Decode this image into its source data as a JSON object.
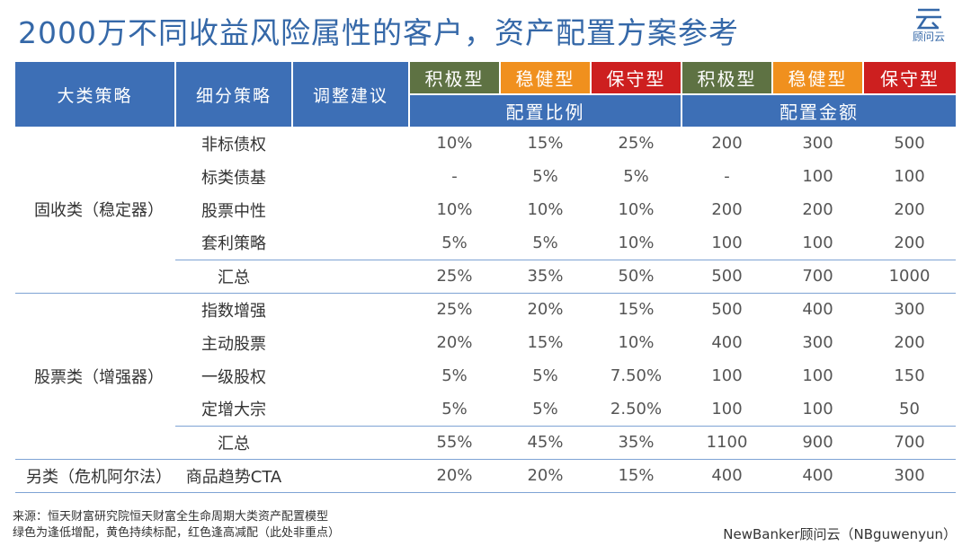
{
  "title": "2000万不同收益风险属性的客户，资产配置方案参考",
  "logo": {
    "icon": "guwenyun-logo-icon",
    "text": "顾问云"
  },
  "colors": {
    "header": "#3d6fb6",
    "aggressive": "#5e7243",
    "balanced": "#f0901e",
    "conservative": "#cd1f1f",
    "title": "#3568a8"
  },
  "table": {
    "headers": {
      "category": "大类策略",
      "substrategy": "细分策略",
      "adjust": "调整建议"
    },
    "risk_labels": [
      "积极型",
      "稳健型",
      "保守型",
      "积极型",
      "稳健型",
      "保守型"
    ],
    "group_labels": [
      "配置比例",
      "配置金额"
    ],
    "sections": [
      {
        "category": "固收类（稳定器）",
        "rows": [
          {
            "name": "非标债权",
            "values": [
              "10%",
              "15%",
              "25%",
              "200",
              "300",
              "500"
            ]
          },
          {
            "name": "标类债基",
            "values": [
              "-",
              "5%",
              "5%",
              "-",
              "100",
              "100"
            ]
          },
          {
            "name": "股票中性",
            "values": [
              "10%",
              "10%",
              "10%",
              "200",
              "200",
              "200"
            ]
          },
          {
            "name": "套利策略",
            "values": [
              "5%",
              "5%",
              "10%",
              "100",
              "100",
              "200"
            ]
          }
        ],
        "summary": {
          "name": "汇总",
          "values": [
            "25%",
            "35%",
            "50%",
            "500",
            "700",
            "1000"
          ]
        }
      },
      {
        "category": "股票类（增强器）",
        "rows": [
          {
            "name": "指数增强",
            "values": [
              "25%",
              "20%",
              "15%",
              "500",
              "400",
              "300"
            ]
          },
          {
            "name": "主动股票",
            "values": [
              "20%",
              "15%",
              "10%",
              "400",
              "300",
              "200"
            ]
          },
          {
            "name": "一级股权",
            "values": [
              "5%",
              "5%",
              "7.50%",
              "100",
              "100",
              "150"
            ]
          },
          {
            "name": "定增大宗",
            "values": [
              "5%",
              "5%",
              "2.50%",
              "100",
              "100",
              "50"
            ]
          }
        ],
        "summary": {
          "name": "汇总",
          "values": [
            "55%",
            "45%",
            "35%",
            "1100",
            "900",
            "700"
          ]
        }
      },
      {
        "category": "另类（危机阿尔法）",
        "rows": [
          {
            "name": "商品趋势CTA",
            "values": [
              "20%",
              "20%",
              "15%",
              "400",
              "400",
              "300"
            ]
          }
        ]
      }
    ]
  },
  "footer": {
    "source": "来源：恒天财富研究院恒天财富全生命周期大类资产配置模型",
    "note": "绿色为逢低增配，黄色持续标配，红色逢高减配（此处非重点）",
    "credit": "NewBanker顾问云（NBguwenyun）"
  }
}
